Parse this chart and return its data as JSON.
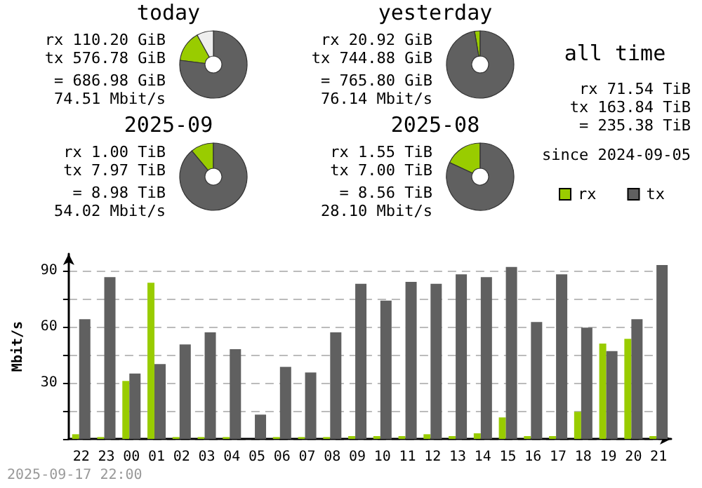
{
  "chart_data": [
    {
      "type": "donut",
      "title": "today",
      "categories": [
        null,
        null,
        null
      ],
      "values": [
        15,
        77,
        8
      ],
      "colors": [
        "#99cc00",
        "#606060",
        "#eeeeee"
      ],
      "annotations": [
        "rx 110.20 GiB",
        "tx 576.78 GiB",
        "= 686.98 GiB",
        "74.51 Mbit/s"
      ]
    },
    {
      "type": "donut",
      "title": "yesterday",
      "categories": [
        null,
        null
      ],
      "values": [
        2.7,
        97.3
      ],
      "colors": [
        "#99cc00",
        "#606060"
      ],
      "annotations": [
        "rx 20.92 GiB",
        "tx 744.88 GiB",
        "= 765.80 GiB",
        "76.14 Mbit/s"
      ]
    },
    {
      "type": "other",
      "title": "all time",
      "annotations": [
        "rx 71.54 TiB",
        "tx 163.84 TiB",
        "= 235.38 TiB",
        "since 2024-09-05"
      ]
    },
    {
      "type": "donut",
      "title": "2025-09",
      "categories": [
        null,
        null
      ],
      "values": [
        11.1,
        88.9
      ],
      "colors": [
        "#99cc00",
        "#606060"
      ],
      "annotations": [
        "rx 1.00 TiB",
        "tx 7.97 TiB",
        "= 8.98 TiB",
        "54.02 Mbit/s"
      ]
    },
    {
      "type": "donut",
      "title": "2025-08",
      "categories": [
        null,
        null
      ],
      "values": [
        18.1,
        81.9
      ],
      "colors": [
        "#99cc00",
        "#606060"
      ],
      "annotations": [
        "rx 1.55 TiB",
        "tx 7.00 TiB",
        "= 8.56 TiB",
        "28.10 Mbit/s"
      ]
    },
    {
      "type": "bar",
      "ylabel": "Mbit/s",
      "categories": [
        "22",
        "23",
        "00",
        "01",
        "02",
        "03",
        "04",
        "05",
        "06",
        "07",
        "08",
        "09",
        "10",
        "11",
        "12",
        "13",
        "14",
        "15",
        "16",
        "17",
        "18",
        "19",
        "20",
        "21"
      ],
      "series": [
        {
          "name": "rx",
          "color": "#99cc00",
          "values": [
            2.5,
            1,
            31,
            83.5,
            1,
            1,
            1,
            0,
            1,
            1,
            1,
            1.5,
            1.5,
            1.5,
            2.5,
            1.5,
            3,
            11.5,
            1.5,
            1.5,
            14.5,
            51,
            53.5,
            1.5
          ]
        },
        {
          "name": "tx",
          "color": "#606060",
          "values": [
            64,
            86.5,
            35,
            40,
            50.5,
            57,
            48,
            13,
            38.5,
            35.5,
            57,
            83,
            74,
            84,
            83,
            88,
            86.5,
            92,
            62.5,
            88,
            59.5,
            47,
            64,
            93
          ]
        }
      ],
      "ylim": [
        0,
        99
      ],
      "yticks": [
        {
          "value": 0,
          "label": null
        },
        {
          "value": 15,
          "label": null
        },
        30,
        {
          "value": 45,
          "label": null
        },
        60,
        {
          "value": 75,
          "label": null
        },
        90
      ],
      "grid": "y",
      "legend": "top right",
      "annotations": [
        "2025-09-17 22:00"
      ]
    }
  ]
}
